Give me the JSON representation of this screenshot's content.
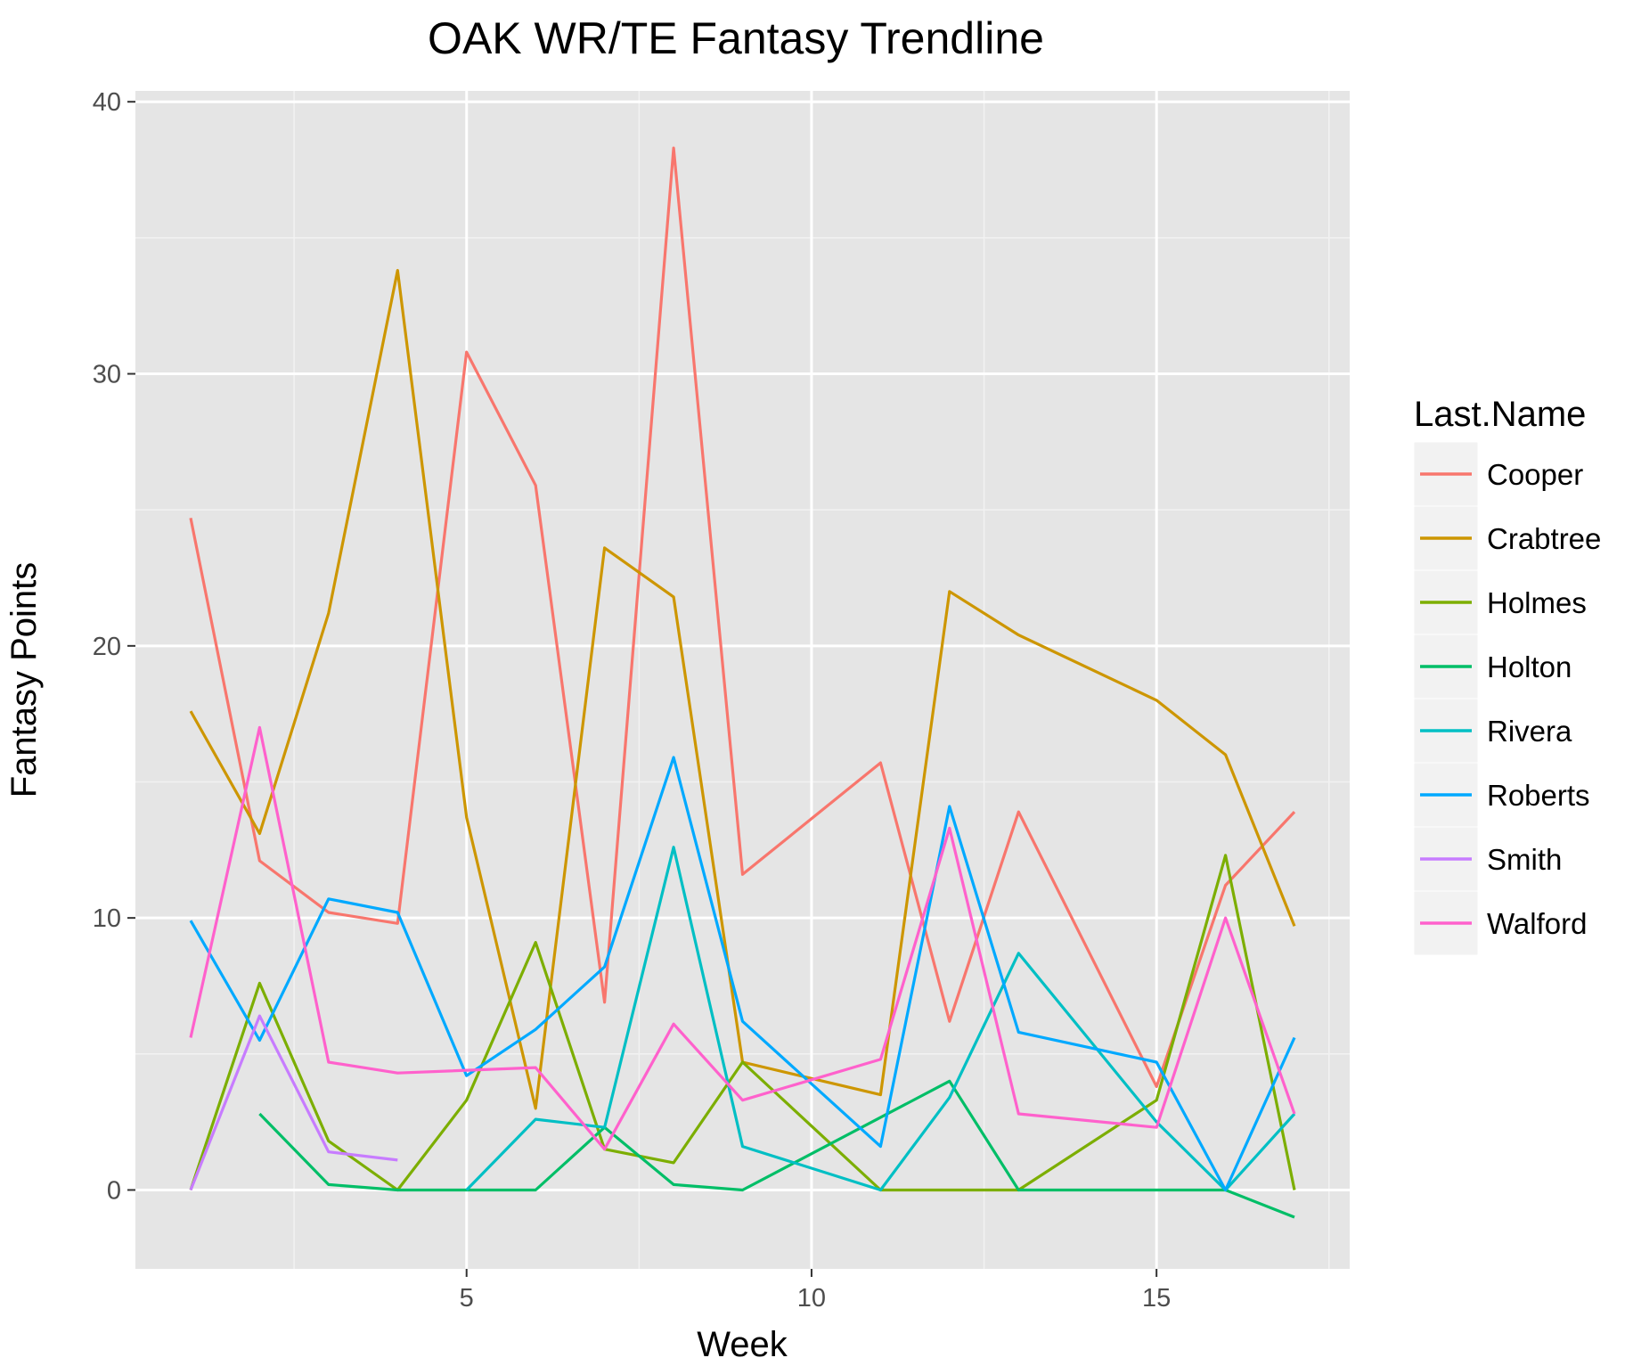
{
  "chart_data": {
    "type": "line",
    "title": "OAK WR/TE Fantasy Trendline",
    "xlabel": "Week",
    "ylabel": "Fantasy Points",
    "xlim": [
      0.2,
      17.8
    ],
    "ylim": [
      -2.9,
      40.4
    ],
    "x_ticks": [
      5,
      10,
      15
    ],
    "x_minor": [
      2.5,
      7.5,
      12.5,
      17.5
    ],
    "y_ticks": [
      0,
      10,
      20,
      30,
      40
    ],
    "y_minor": [
      5,
      15,
      25,
      35
    ],
    "grid": true,
    "legend_title": "Last.Name",
    "legend_position": "right",
    "panel_background": "#e5e5e5",
    "series": [
      {
        "name": "Cooper",
        "color": "#F8766D",
        "points": [
          [
            1,
            24.7
          ],
          [
            2,
            12.1
          ],
          [
            3,
            10.2
          ],
          [
            4,
            9.8
          ],
          [
            5,
            30.8
          ],
          [
            6,
            25.9
          ],
          [
            7,
            6.9
          ],
          [
            8,
            38.3
          ],
          [
            9,
            11.6
          ],
          [
            11,
            15.7
          ],
          [
            12,
            6.2
          ],
          [
            13,
            13.9
          ],
          [
            15,
            3.8
          ],
          [
            16,
            11.2
          ],
          [
            17,
            13.9
          ]
        ]
      },
      {
        "name": "Crabtree",
        "color": "#CD9600",
        "points": [
          [
            1,
            17.6
          ],
          [
            2,
            13.1
          ],
          [
            3,
            21.2
          ],
          [
            4,
            33.8
          ],
          [
            5,
            13.7
          ],
          [
            6,
            3.0
          ],
          [
            7,
            23.6
          ],
          [
            8,
            21.8
          ],
          [
            9,
            4.7
          ],
          [
            11,
            3.5
          ],
          [
            12,
            22.0
          ],
          [
            13,
            20.4
          ],
          [
            15,
            18.0
          ],
          [
            16,
            16.0
          ],
          [
            17,
            9.7
          ]
        ]
      },
      {
        "name": "Holmes",
        "color": "#7CAE00",
        "points": [
          [
            1,
            0
          ],
          [
            2,
            7.6
          ],
          [
            3,
            1.8
          ],
          [
            4,
            0
          ],
          [
            5,
            3.3
          ],
          [
            6,
            9.1
          ],
          [
            7,
            1.5
          ],
          [
            8,
            1.0
          ],
          [
            9,
            4.7
          ],
          [
            11,
            0
          ],
          [
            12,
            0
          ],
          [
            13,
            0
          ],
          [
            15,
            3.3
          ],
          [
            16,
            12.3
          ],
          [
            17,
            0
          ]
        ]
      },
      {
        "name": "Holton",
        "color": "#00BE67",
        "points": [
          [
            2,
            2.8
          ],
          [
            3,
            0.2
          ],
          [
            4,
            0
          ],
          [
            5,
            0
          ],
          [
            6,
            0
          ],
          [
            7,
            2.3
          ],
          [
            8,
            0.2
          ],
          [
            9,
            0
          ],
          [
            12,
            4.0
          ],
          [
            13,
            0
          ],
          [
            15,
            0
          ],
          [
            16,
            0
          ],
          [
            17,
            -1.0
          ]
        ]
      },
      {
        "name": "Rivera",
        "color": "#00BFC4",
        "points": [
          [
            5,
            0
          ],
          [
            6,
            2.6
          ],
          [
            7,
            2.3
          ],
          [
            8,
            12.6
          ],
          [
            9,
            1.6
          ],
          [
            11,
            0
          ],
          [
            12,
            3.4
          ],
          [
            13,
            8.7
          ],
          [
            15,
            2.5
          ],
          [
            16,
            0
          ],
          [
            17,
            2.8
          ]
        ]
      },
      {
        "name": "Roberts",
        "color": "#00A9FF",
        "points": [
          [
            1,
            9.9
          ],
          [
            2,
            5.5
          ],
          [
            3,
            10.7
          ],
          [
            4,
            10.2
          ],
          [
            5,
            4.2
          ],
          [
            6,
            5.9
          ],
          [
            7,
            8.2
          ],
          [
            8,
            15.9
          ],
          [
            9,
            6.2
          ],
          [
            11,
            1.6
          ],
          [
            12,
            14.1
          ],
          [
            13,
            5.8
          ],
          [
            15,
            4.7
          ],
          [
            16,
            0
          ],
          [
            17,
            5.6
          ]
        ]
      },
      {
        "name": "Smith",
        "color": "#C77CFF",
        "points": [
          [
            1,
            0
          ],
          [
            2,
            6.4
          ],
          [
            3,
            1.4
          ],
          [
            4,
            1.1
          ]
        ]
      },
      {
        "name": "Walford",
        "color": "#FF61CC",
        "points": [
          [
            1,
            5.6
          ],
          [
            2,
            17.0
          ],
          [
            3,
            4.7
          ],
          [
            4,
            4.3
          ],
          [
            6,
            4.5
          ],
          [
            7,
            1.5
          ],
          [
            8,
            6.1
          ],
          [
            9,
            3.3
          ],
          [
            11,
            4.8
          ],
          [
            12,
            13.3
          ],
          [
            13,
            2.8
          ],
          [
            15,
            2.3
          ],
          [
            16,
            10.0
          ],
          [
            17,
            2.8
          ]
        ]
      }
    ]
  }
}
